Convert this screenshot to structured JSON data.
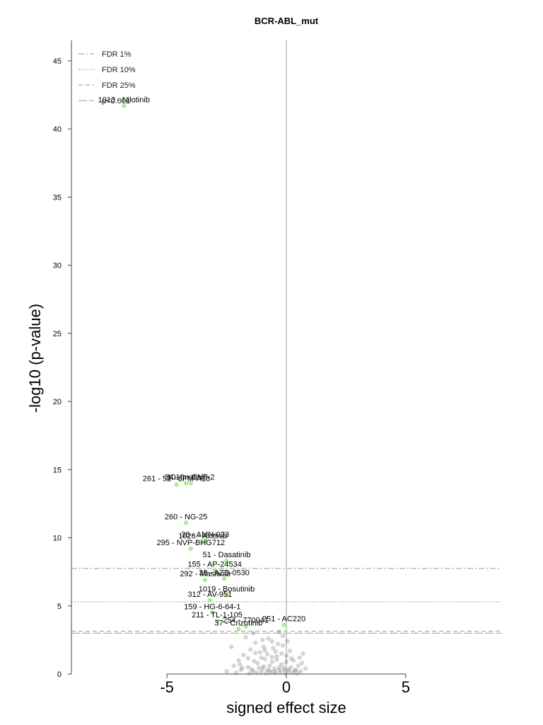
{
  "chart_data": {
    "type": "scatter",
    "title": "BCR-ABL_mut",
    "xlabel": "signed effect size",
    "ylabel": "-log10 (p-value)",
    "xlim": [
      -9,
      9
    ],
    "ylim": [
      0,
      46.5
    ],
    "xticks": [
      -5,
      0,
      5
    ],
    "xtick_labels": [
      "-5",
      "0",
      "5"
    ],
    "yticks": [
      0,
      5,
      10,
      15,
      20,
      25,
      30,
      35,
      40,
      45
    ],
    "ytick_labels": [
      "0",
      "5",
      "10",
      "15",
      "20",
      "25",
      "30",
      "35",
      "40",
      "45"
    ],
    "grid": false,
    "legend_position": "top-left",
    "colors": {
      "significant": "#a8ee98",
      "background": "#333333",
      "zero_line": "#bbbbbb",
      "threshold_line": "#999999",
      "axis": "#444444"
    },
    "thresholds": [
      {
        "name": "FDR 1%",
        "y": 7.75,
        "style": "dashdot"
      },
      {
        "name": "FDR 10%",
        "y": 5.3,
        "style": "dotted"
      },
      {
        "name": "FDR 25%",
        "y": 3.15,
        "style": "dashed"
      },
      {
        "name": "p<0.001",
        "y": 3.0,
        "style": "longdash"
      }
    ],
    "significant_points": [
      {
        "x": -6.8,
        "y": 41.7,
        "label": "1013 - Nilotinib"
      },
      {
        "x": -4.6,
        "y": 13.9,
        "label": "261 - 52 - LFM-A13"
      },
      {
        "x": -4.2,
        "y": 14.0,
        "label": "34 - Imatinib"
      },
      {
        "x": -4.0,
        "y": 14.0,
        "label": "1010 - GNF-2"
      },
      {
        "x": -4.2,
        "y": 11.1,
        "label": "260 - NG-25"
      },
      {
        "x": -3.5,
        "y": 9.7,
        "label": "1026 - Axitinib"
      },
      {
        "x": -3.4,
        "y": 9.8,
        "label": "36 - AMN-023"
      },
      {
        "x": -4.0,
        "y": 9.2,
        "label": "295 - NVP-BHG712"
      },
      {
        "x": -2.5,
        "y": 8.3,
        "label": "51 - Dasatinib"
      },
      {
        "x": -3.0,
        "y": 7.6,
        "label": "155 - AP-24534"
      },
      {
        "x": -2.6,
        "y": 7.0,
        "label": "38 - AZD-0530"
      },
      {
        "x": -3.4,
        "y": 6.9,
        "label": "292 - Masitinib"
      },
      {
        "x": -2.5,
        "y": 5.8,
        "label": "1019 - Bosutinib"
      },
      {
        "x": -3.2,
        "y": 5.4,
        "label": "312 - AV-951"
      },
      {
        "x": -3.1,
        "y": 4.5,
        "label": "159 - HG-6-64-1"
      },
      {
        "x": -2.9,
        "y": 3.9,
        "label": "211 - TL-1-105"
      },
      {
        "x": -2.0,
        "y": 3.3,
        "label": "37 - Crizotinib"
      },
      {
        "x": -1.7,
        "y": 3.5,
        "label": "254 - 770041"
      },
      {
        "x": -0.1,
        "y": 3.6,
        "label": "251 - AC220"
      }
    ],
    "background_points": [
      [
        -1.9,
        0.3
      ],
      [
        -1.6,
        0.5
      ],
      [
        -1.4,
        0.2
      ],
      [
        -1.2,
        0.8
      ],
      [
        -1.0,
        0.4
      ],
      [
        -0.9,
        1.1
      ],
      [
        -0.8,
        0.3
      ],
      [
        -0.7,
        0.6
      ],
      [
        -0.6,
        0.9
      ],
      [
        -0.5,
        0.2
      ],
      [
        -0.4,
        1.3
      ],
      [
        -0.3,
        0.5
      ],
      [
        -0.2,
        0.7
      ],
      [
        -0.1,
        0.3
      ],
      [
        0.0,
        0.9
      ],
      [
        0.1,
        0.2
      ],
      [
        0.2,
        0.5
      ],
      [
        0.3,
        1.0
      ],
      [
        0.4,
        0.3
      ],
      [
        0.5,
        0.6
      ],
      [
        0.6,
        0.2
      ],
      [
        0.7,
        1.5
      ],
      [
        0.8,
        0.4
      ],
      [
        -1.8,
        1.4
      ],
      [
        -1.5,
        1.8
      ],
      [
        -1.3,
        2.3
      ],
      [
        -1.1,
        1.6
      ],
      [
        -0.95,
        2.0
      ],
      [
        -0.75,
        2.6
      ],
      [
        -0.55,
        1.9
      ],
      [
        -0.35,
        2.2
      ],
      [
        -0.15,
        2.8
      ],
      [
        0.05,
        2.4
      ],
      [
        0.15,
        1.7
      ],
      [
        -2.2,
        0.6
      ],
      [
        -2.0,
        1.0
      ],
      [
        -2.3,
        2.0
      ],
      [
        -1.7,
        2.7
      ],
      [
        -1.25,
        0.1
      ],
      [
        -1.05,
        0.15
      ],
      [
        -0.85,
        0.05
      ],
      [
        -0.65,
        0.1
      ],
      [
        -0.45,
        0.08
      ],
      [
        -0.25,
        0.12
      ],
      [
        -0.05,
        0.06
      ],
      [
        0.25,
        0.1
      ],
      [
        0.45,
        0.05
      ],
      [
        -1.45,
        0.35
      ],
      [
        -1.15,
        0.45
      ],
      [
        -0.95,
        0.55
      ],
      [
        -0.7,
        0.25
      ],
      [
        -0.5,
        0.4
      ],
      [
        -0.3,
        0.3
      ],
      [
        -0.1,
        0.45
      ],
      [
        0.1,
        0.35
      ],
      [
        0.35,
        0.25
      ],
      [
        -1.35,
        0.95
      ],
      [
        -1.05,
        1.2
      ],
      [
        -0.8,
        1.45
      ],
      [
        -0.6,
        1.25
      ],
      [
        -0.4,
        1.05
      ],
      [
        -0.2,
        1.5
      ],
      [
        0.0,
        1.35
      ],
      [
        0.2,
        1.15
      ],
      [
        -2.5,
        0.2
      ],
      [
        -2.1,
        0.1
      ],
      [
        -1.95,
        0.7
      ],
      [
        -1.6,
        1.15
      ],
      [
        -1.3,
        1.55
      ],
      [
        -0.9,
        1.75
      ],
      [
        -0.45,
        1.65
      ],
      [
        0.55,
        1.2
      ],
      [
        0.65,
        0.8
      ],
      [
        -1.55,
        0.05
      ],
      [
        -1.85,
        0.45
      ],
      [
        -0.15,
        2.1
      ],
      [
        -0.6,
        2.4
      ],
      [
        -1.0,
        2.5
      ],
      [
        -1.4,
        3.0
      ],
      [
        -0.3,
        3.1
      ]
    ]
  }
}
